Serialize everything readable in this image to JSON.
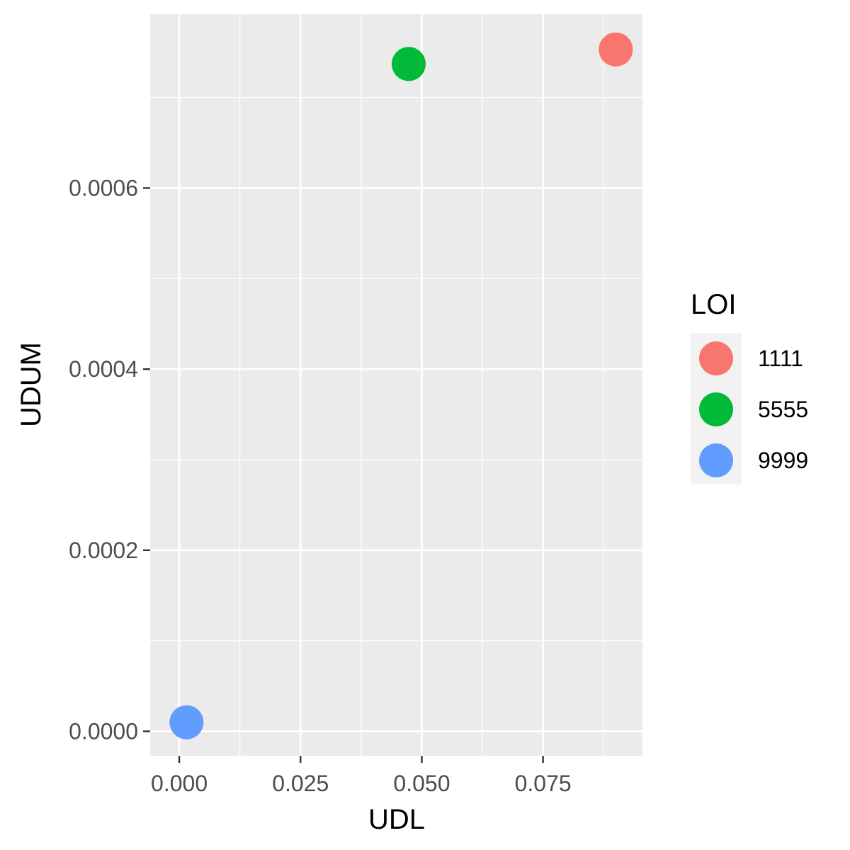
{
  "chart_data": {
    "type": "scatter",
    "xlabel": "UDL",
    "ylabel": "UDUM",
    "xlim": [
      -0.006,
      0.0955
    ],
    "ylim": [
      -2.7e-05,
      0.000792
    ],
    "x_ticks": [
      0.0,
      0.025,
      0.05,
      0.075
    ],
    "x_tick_labels": [
      "0.000",
      "0.025",
      "0.050",
      "0.075"
    ],
    "y_ticks": [
      0.0,
      0.0002,
      0.0004,
      0.0006
    ],
    "y_tick_labels": [
      "0.0000",
      "0.0002",
      "0.0004",
      "0.0006"
    ],
    "grid": true,
    "legend": {
      "title": "LOI",
      "placement": "right",
      "entries": [
        "1111",
        "5555",
        "9999"
      ]
    },
    "series": [
      {
        "name": "1111",
        "color": "#F8766D",
        "x": [
          0.09
        ],
        "y": [
          0.000753
        ]
      },
      {
        "name": "5555",
        "color": "#00BA38",
        "x": [
          0.0473
        ],
        "y": [
          0.000737
        ]
      },
      {
        "name": "9999",
        "color": "#619CFF",
        "x": [
          0.0015
        ],
        "y": [
          1e-05
        ]
      }
    ]
  }
}
